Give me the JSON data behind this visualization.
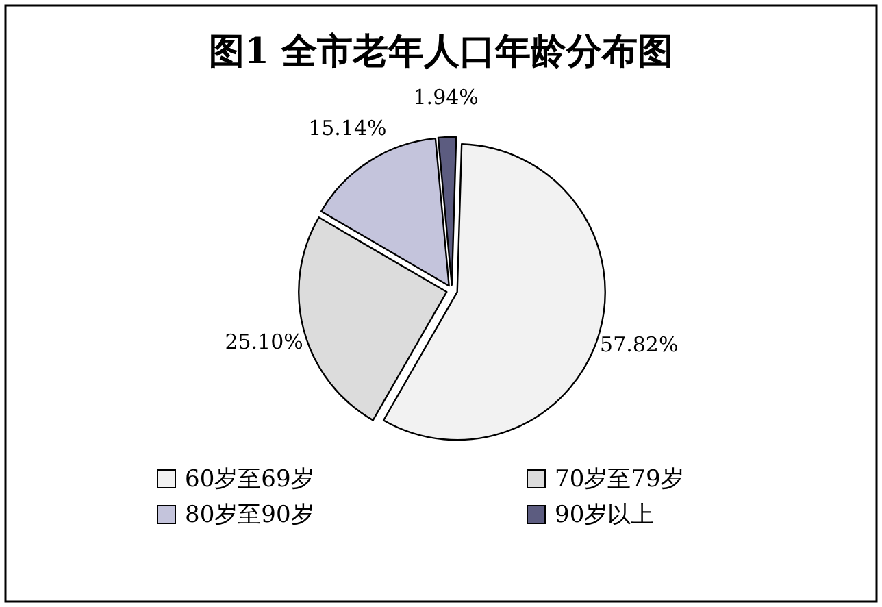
{
  "chart_data": {
    "type": "pie",
    "title": "图1 全市老年人口年龄分布图",
    "categories": [
      "60岁至69岁",
      "70岁至79岁",
      "80岁至90岁",
      "90岁以上"
    ],
    "values": [
      57.82,
      25.1,
      15.14,
      1.94
    ],
    "value_labels": [
      "57.82%",
      "25.10%",
      "15.14%",
      "1.94%"
    ],
    "colors": [
      "#f2f2f2",
      "#dcdcdc",
      "#c4c4dc",
      "#5c5c80"
    ],
    "legend": "bottom"
  }
}
